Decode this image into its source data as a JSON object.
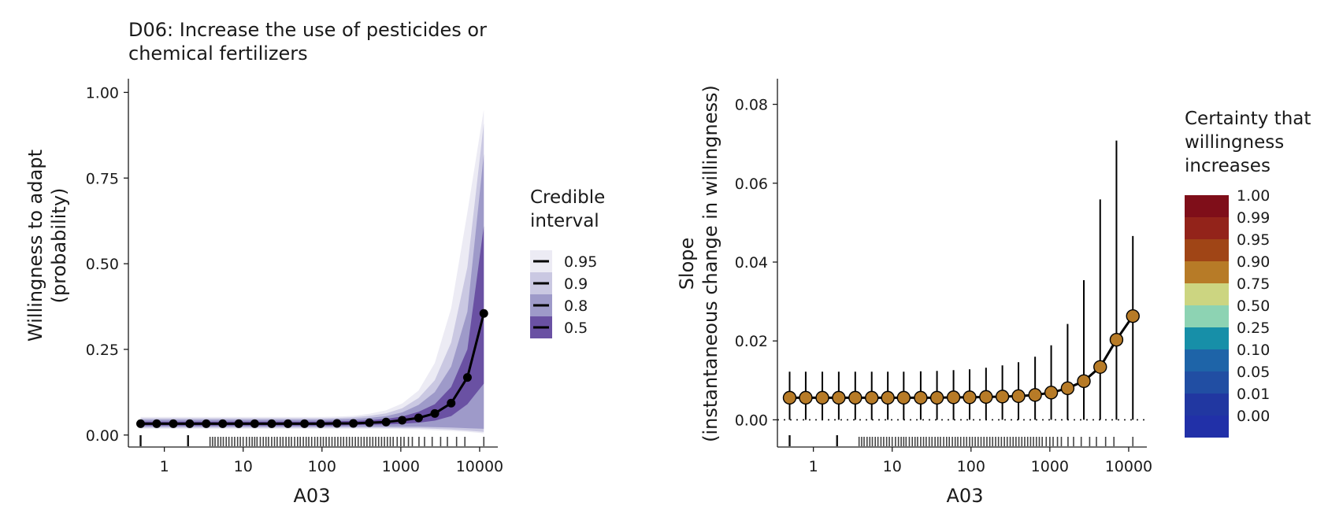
{
  "chart_data": [
    {
      "type": "line",
      "title_lines": [
        "D06: Increase the use of pesticides or",
        "chemical fertilizers"
      ],
      "xlabel": "A03",
      "ylabel_lines": [
        "Willingness to adapt",
        "(probability)"
      ],
      "xscale": "log10",
      "xlim": [
        0.35,
        17000
      ],
      "ylim": [
        -0.035,
        1.04
      ],
      "xticks": [
        {
          "v": 1,
          "label": "1"
        },
        {
          "v": 10,
          "label": "10"
        },
        {
          "v": 100,
          "label": "100"
        },
        {
          "v": 1000,
          "label": "1000"
        },
        {
          "v": 10000,
          "label": "10000"
        }
      ],
      "yticks": [
        {
          "v": 0,
          "label": "0.00"
        },
        {
          "v": 0.25,
          "label": "0.25"
        },
        {
          "v": 0.5,
          "label": "0.50"
        },
        {
          "v": 0.75,
          "label": "0.75"
        },
        {
          "v": 1,
          "label": "1.00"
        }
      ],
      "x": [
        0.5,
        0.8,
        1.3,
        2.1,
        3.4,
        5.5,
        8.8,
        14,
        23,
        37,
        60,
        96,
        155,
        250,
        400,
        650,
        1040,
        1680,
        2700,
        4350,
        7000,
        11300
      ],
      "median": [
        0.033,
        0.033,
        0.033,
        0.033,
        0.033,
        0.033,
        0.033,
        0.033,
        0.033,
        0.033,
        0.033,
        0.033,
        0.034,
        0.034,
        0.036,
        0.038,
        0.043,
        0.05,
        0.063,
        0.093,
        0.168,
        0.355
      ],
      "intervals": [
        {
          "level": "0.95",
          "color": "#ecebf4",
          "lo": [
            0.018,
            0.018,
            0.018,
            0.018,
            0.018,
            0.018,
            0.018,
            0.018,
            0.018,
            0.018,
            0.018,
            0.018,
            0.018,
            0.018,
            0.018,
            0.018,
            0.017,
            0.016,
            0.014,
            0.012,
            0.009,
            0.005
          ],
          "hi": [
            0.053,
            0.053,
            0.053,
            0.053,
            0.053,
            0.053,
            0.053,
            0.053,
            0.053,
            0.053,
            0.053,
            0.053,
            0.054,
            0.056,
            0.062,
            0.072,
            0.092,
            0.13,
            0.21,
            0.37,
            0.65,
            0.95
          ]
        },
        {
          "level": "0.9",
          "color": "#cac8e2",
          "lo": [
            0.021,
            0.021,
            0.021,
            0.021,
            0.021,
            0.021,
            0.021,
            0.021,
            0.021,
            0.021,
            0.021,
            0.021,
            0.021,
            0.021,
            0.021,
            0.021,
            0.02,
            0.02,
            0.018,
            0.016,
            0.013,
            0.009
          ],
          "hi": [
            0.049,
            0.049,
            0.049,
            0.049,
            0.049,
            0.049,
            0.049,
            0.049,
            0.049,
            0.049,
            0.049,
            0.049,
            0.05,
            0.052,
            0.056,
            0.063,
            0.078,
            0.108,
            0.16,
            0.27,
            0.49,
            0.91
          ]
        },
        {
          "level": "0.8",
          "color": "#9e9ac9",
          "lo": [
            0.024,
            0.024,
            0.024,
            0.024,
            0.024,
            0.024,
            0.024,
            0.024,
            0.024,
            0.024,
            0.024,
            0.024,
            0.024,
            0.024,
            0.024,
            0.024,
            0.024,
            0.024,
            0.023,
            0.022,
            0.02,
            0.018
          ],
          "hi": [
            0.045,
            0.045,
            0.045,
            0.045,
            0.045,
            0.045,
            0.045,
            0.045,
            0.045,
            0.045,
            0.045,
            0.045,
            0.046,
            0.047,
            0.05,
            0.055,
            0.066,
            0.088,
            0.125,
            0.2,
            0.36,
            0.82
          ]
        },
        {
          "level": "0.5",
          "color": "#6a51a3",
          "lo": [
            0.028,
            0.028,
            0.028,
            0.028,
            0.028,
            0.028,
            0.028,
            0.028,
            0.028,
            0.028,
            0.028,
            0.028,
            0.028,
            0.029,
            0.03,
            0.031,
            0.033,
            0.036,
            0.042,
            0.055,
            0.09,
            0.15
          ],
          "hi": [
            0.039,
            0.039,
            0.039,
            0.039,
            0.039,
            0.039,
            0.039,
            0.039,
            0.039,
            0.039,
            0.039,
            0.039,
            0.04,
            0.041,
            0.043,
            0.047,
            0.054,
            0.068,
            0.09,
            0.14,
            0.25,
            0.61
          ]
        }
      ],
      "legend": {
        "title_lines": [
          "Credible",
          "interval"
        ],
        "items": [
          "0.95",
          "0.9",
          "0.8",
          "0.5"
        ],
        "placement": "right"
      },
      "rug": [
        0.5,
        2.0,
        3.8,
        4.1,
        4.4,
        4.8,
        5.2,
        5.6,
        6.1,
        6.6,
        7.2,
        7.8,
        8.5,
        9.2,
        10,
        11,
        12,
        13,
        14,
        15,
        16.5,
        18,
        19.5,
        21,
        23,
        25,
        27,
        29.5,
        32,
        35,
        38,
        41,
        45,
        49,
        53,
        58,
        63,
        68,
        74,
        81,
        88,
        96,
        104,
        113,
        123,
        134,
        146,
        159,
        173,
        188,
        205,
        223,
        243,
        265,
        288,
        314,
        342,
        372,
        405,
        441,
        480,
        523,
        570,
        620,
        675,
        735,
        800,
        900,
        1000,
        1100,
        1250,
        1400,
        1700,
        2000,
        2500,
        3200,
        3900,
        5100,
        6500,
        11300
      ]
    },
    {
      "type": "line",
      "xlabel": "A03",
      "ylabel_lines": [
        "Slope",
        "(instantaneous change in willingness)"
      ],
      "xscale": "log10",
      "xlim": [
        0.35,
        17000
      ],
      "ylim": [
        -0.0069,
        0.0865
      ],
      "xticks": [
        {
          "v": 1,
          "label": "1"
        },
        {
          "v": 10,
          "label": "10"
        },
        {
          "v": 100,
          "label": "100"
        },
        {
          "v": 1000,
          "label": "1000"
        },
        {
          "v": 10000,
          "label": "10000"
        }
      ],
      "yticks": [
        {
          "v": 0,
          "label": "0.00"
        },
        {
          "v": 0.02,
          "label": "0.02"
        },
        {
          "v": 0.04,
          "label": "0.04"
        },
        {
          "v": 0.06,
          "label": "0.06"
        },
        {
          "v": 0.08,
          "label": "0.08"
        }
      ],
      "reference_line": 0,
      "x": [
        0.5,
        0.8,
        1.3,
        2.1,
        3.4,
        5.5,
        8.8,
        14,
        23,
        37,
        60,
        96,
        155,
        250,
        400,
        650,
        1040,
        1680,
        2700,
        4350,
        7000,
        11300
      ],
      "slope": [
        0.0056,
        0.0056,
        0.0056,
        0.0056,
        0.0056,
        0.0056,
        0.0056,
        0.0056,
        0.0056,
        0.0056,
        0.0057,
        0.0057,
        0.0058,
        0.0059,
        0.006,
        0.0063,
        0.0069,
        0.008,
        0.0098,
        0.0134,
        0.0203,
        0.0263
      ],
      "lo": [
        0,
        0,
        0,
        0,
        0,
        0,
        0,
        0,
        0,
        0,
        0,
        0,
        0,
        0,
        0,
        0,
        0,
        0,
        0,
        0,
        0,
        0
      ],
      "hi": [
        0.0122,
        0.0122,
        0.0122,
        0.0122,
        0.0122,
        0.0122,
        0.0122,
        0.0122,
        0.0123,
        0.0124,
        0.0126,
        0.0128,
        0.0132,
        0.0138,
        0.0146,
        0.016,
        0.0189,
        0.0243,
        0.0354,
        0.0559,
        0.0708,
        0.0466
      ],
      "certainty_levels": [
        "0.90",
        "0.90",
        "0.90",
        "0.90",
        "0.90",
        "0.90",
        "0.90",
        "0.90",
        "0.90",
        "0.90",
        "0.90",
        "0.90",
        "0.90",
        "0.90",
        "0.90",
        "0.90",
        "0.90",
        "0.90",
        "0.90",
        "0.90",
        "0.90",
        "0.90"
      ],
      "legend": {
        "title_lines": [
          "Certainty that",
          "willingness",
          "increases"
        ],
        "placement": "right",
        "items": [
          {
            "label": "1.00",
            "color": "#7f0e19"
          },
          {
            "label": "0.99",
            "color": "#93231a"
          },
          {
            "label": "0.95",
            "color": "#a04516"
          },
          {
            "label": "0.90",
            "color": "#b77b27"
          },
          {
            "label": "0.75",
            "color": "#ccd581"
          },
          {
            "label": "0.50",
            "color": "#8dd3b3"
          },
          {
            "label": "0.25",
            "color": "#178fa8"
          },
          {
            "label": "0.10",
            "color": "#1e64a8"
          },
          {
            "label": "0.05",
            "color": "#214ea3"
          },
          {
            "label": "0.01",
            "color": "#2137a1"
          },
          {
            "label": "0.00",
            "color": "#2130a8"
          }
        ]
      },
      "rug": [
        0.5,
        2.0,
        3.8,
        4.1,
        4.4,
        4.8,
        5.2,
        5.6,
        6.1,
        6.6,
        7.2,
        7.8,
        8.5,
        9.2,
        10,
        11,
        12,
        13,
        14,
        15,
        16.5,
        18,
        19.5,
        21,
        23,
        25,
        27,
        29.5,
        32,
        35,
        38,
        41,
        45,
        49,
        53,
        58,
        63,
        68,
        74,
        81,
        88,
        96,
        104,
        113,
        123,
        134,
        146,
        159,
        173,
        188,
        205,
        223,
        243,
        265,
        288,
        314,
        342,
        372,
        405,
        441,
        480,
        523,
        570,
        620,
        675,
        735,
        800,
        900,
        1000,
        1100,
        1250,
        1400,
        1700,
        2000,
        2500,
        3200,
        3900,
        5100,
        6500,
        11300
      ]
    }
  ]
}
